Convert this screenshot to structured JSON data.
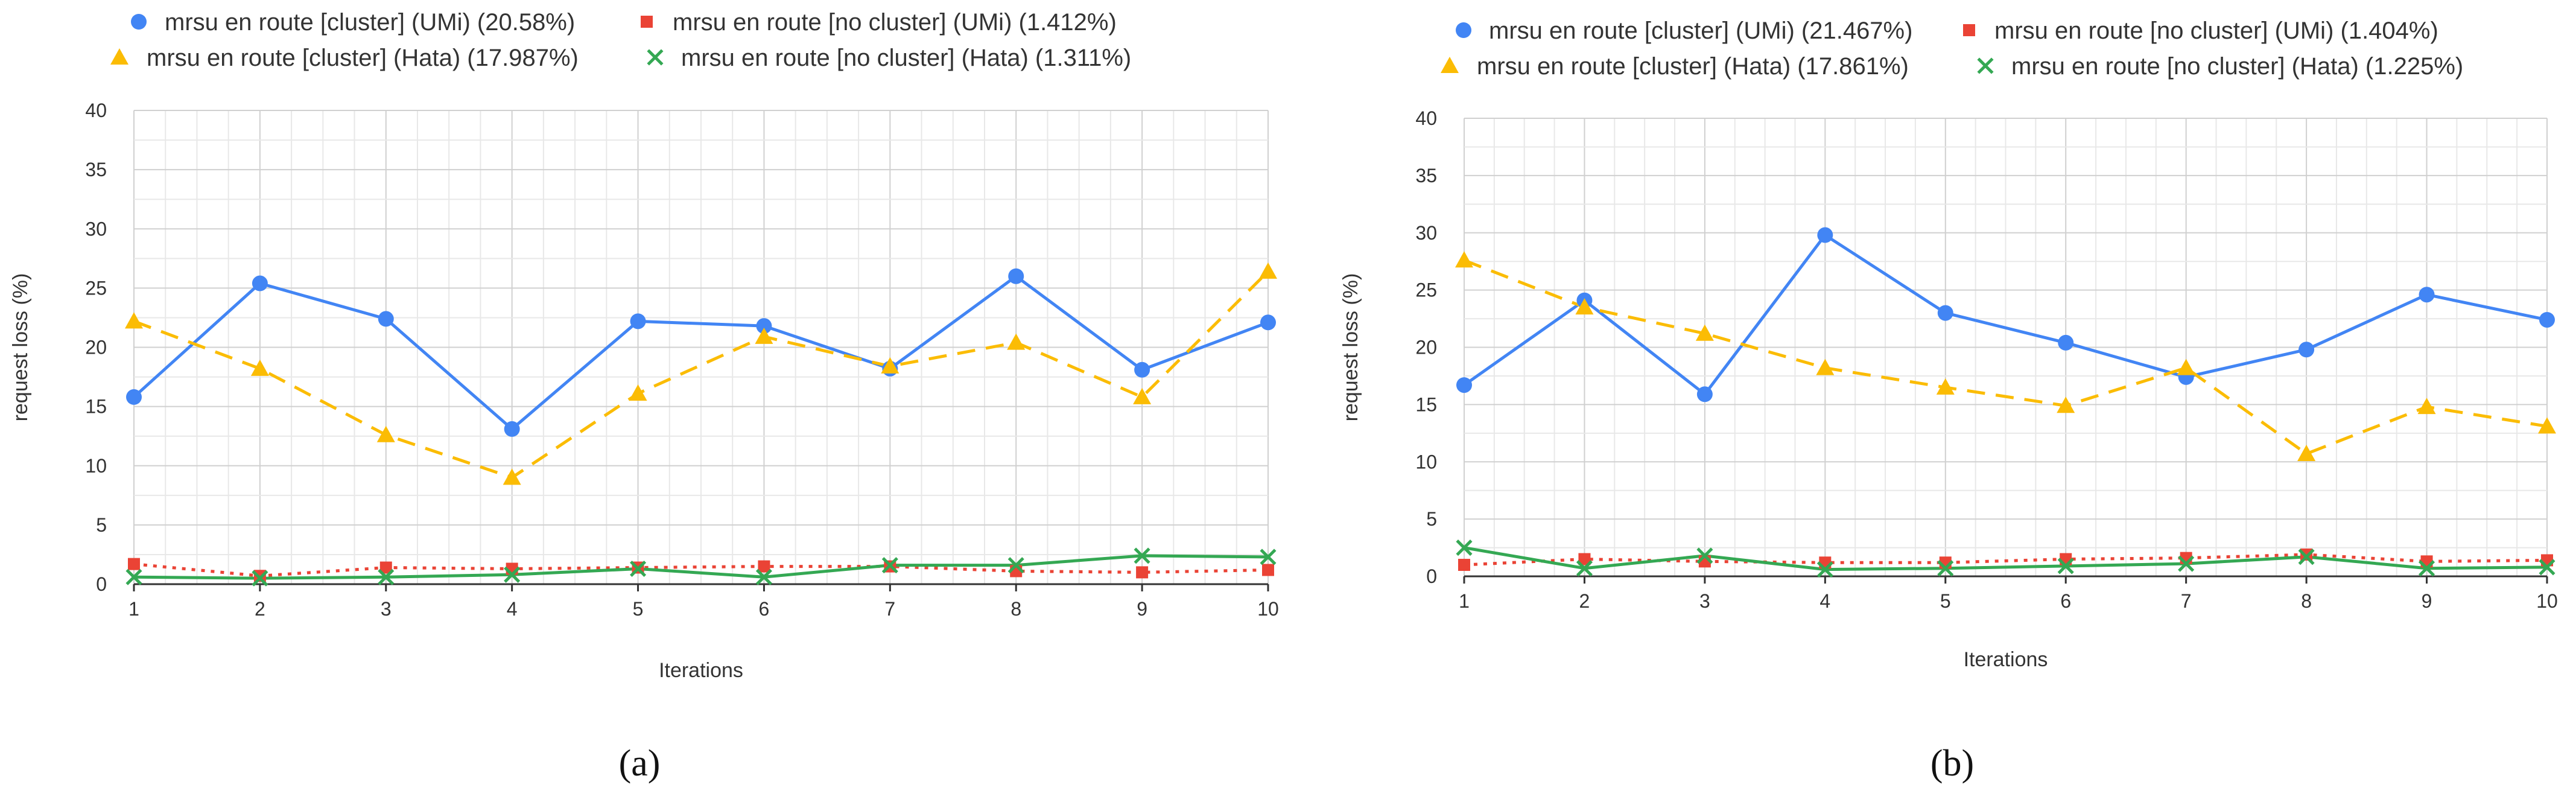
{
  "chart_data": [
    {
      "type": "line",
      "caption": "(a)",
      "xlabel": "Iterations",
      "ylabel": "request loss (%)",
      "x": [
        1,
        2,
        3,
        4,
        5,
        6,
        7,
        8,
        9,
        10
      ],
      "xticks": [
        "1",
        "2",
        "3",
        "4",
        "5",
        "6",
        "7",
        "8",
        "9",
        "10"
      ],
      "yticks": [
        "0",
        "5",
        "10",
        "15",
        "20",
        "25",
        "30",
        "35",
        "40"
      ],
      "ylim": [
        0,
        40
      ],
      "grid": true,
      "legend_position": "top",
      "series": [
        {
          "name": "mrsu en route [cluster] (UMi) (20.58%)",
          "color": "#4285f4",
          "marker": "circle",
          "dash": "solid",
          "values": [
            15.8,
            25.4,
            22.4,
            13.1,
            22.2,
            21.8,
            18.2,
            26.0,
            18.1,
            22.1
          ]
        },
        {
          "name": "mrsu en route [no cluster] (UMi) (1.412%)",
          "color": "#ea4335",
          "marker": "square",
          "dash": "dotted",
          "values": [
            1.7,
            0.7,
            1.4,
            1.3,
            1.4,
            1.5,
            1.5,
            1.1,
            1.0,
            1.2
          ]
        },
        {
          "name": "mrsu en route [cluster] (Hata) (17.987%)",
          "color": "#fbbc04",
          "marker": "triangle",
          "dash": "dashed",
          "values": [
            22.2,
            18.2,
            12.6,
            9.0,
            16.1,
            20.9,
            18.4,
            20.4,
            15.8,
            26.4
          ]
        },
        {
          "name": "mrsu en route [no cluster] (Hata) (1.311%)",
          "color": "#34a853",
          "marker": "x",
          "dash": "solid",
          "values": [
            0.6,
            0.5,
            0.6,
            0.8,
            1.3,
            0.6,
            1.6,
            1.6,
            2.4,
            2.3
          ]
        }
      ]
    },
    {
      "type": "line",
      "caption": "(b)",
      "xlabel": "Iterations",
      "ylabel": "request loss (%)",
      "x": [
        1,
        2,
        3,
        4,
        5,
        6,
        7,
        8,
        9,
        10
      ],
      "xticks": [
        "1",
        "2",
        "3",
        "4",
        "5",
        "6",
        "7",
        "8",
        "9",
        "10"
      ],
      "yticks": [
        "0",
        "5",
        "10",
        "15",
        "20",
        "25",
        "30",
        "35",
        "40"
      ],
      "ylim": [
        0,
        40
      ],
      "grid": true,
      "legend_position": "top",
      "series": [
        {
          "name": "mrsu en route [cluster] (UMi) (21.467%)",
          "color": "#4285f4",
          "marker": "circle",
          "dash": "solid",
          "values": [
            16.7,
            24.1,
            15.9,
            29.8,
            23.0,
            20.4,
            17.4,
            19.8,
            24.6,
            22.4
          ]
        },
        {
          "name": "mrsu en route [no cluster] (UMi) (1.404%)",
          "color": "#ea4335",
          "marker": "square",
          "dash": "dotted",
          "values": [
            1.0,
            1.5,
            1.3,
            1.2,
            1.2,
            1.5,
            1.6,
            1.9,
            1.3,
            1.4
          ]
        },
        {
          "name": "mrsu en route [cluster] (Hata) (17.861%)",
          "color": "#fbbc04",
          "marker": "triangle",
          "dash": "dashed",
          "values": [
            27.6,
            23.5,
            21.2,
            18.2,
            16.5,
            14.9,
            18.2,
            10.7,
            14.8,
            13.1
          ]
        },
        {
          "name": "mrsu en route [no cluster] (Hata) (1.225%)",
          "color": "#34a853",
          "marker": "x",
          "dash": "solid",
          "values": [
            2.5,
            0.7,
            1.8,
            0.6,
            0.7,
            0.9,
            1.1,
            1.7,
            0.7,
            0.8
          ]
        }
      ]
    }
  ]
}
